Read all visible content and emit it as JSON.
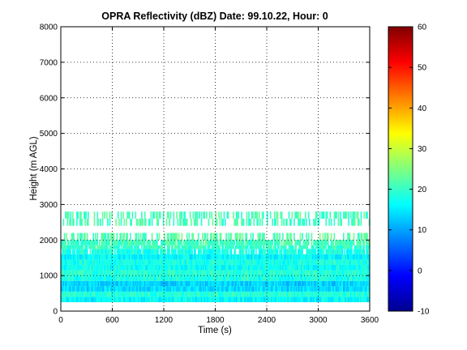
{
  "chart_data": {
    "type": "heatmap",
    "title": "OPRA Reflectivity (dBZ)  Date: 99.10.22, Hour: 0",
    "xlabel": "Time (s)",
    "ylabel": "Height (m AGL)",
    "xlim": [
      0,
      3600
    ],
    "ylim": [
      0,
      8000
    ],
    "x_ticks": [
      "0",
      "600",
      "1200",
      "1800",
      "2400",
      "3000",
      "3600"
    ],
    "y_ticks": [
      "0",
      "1000",
      "2000",
      "3000",
      "4000",
      "5000",
      "6000",
      "7000",
      "8000"
    ],
    "grid": true,
    "grid_style": "dotted",
    "colorbar": {
      "label_ticks": [
        "-10",
        "0",
        "10",
        "20",
        "30",
        "40",
        "50",
        "60"
      ],
      "range": [
        -10,
        60
      ],
      "colormap": "jet"
    },
    "height_bands_dbz": [
      {
        "y0": 250,
        "y1": 400,
        "dbz": 16
      },
      {
        "y0": 400,
        "y1": 550,
        "dbz": 19
      },
      {
        "y0": 550,
        "y1": 700,
        "dbz": 14
      },
      {
        "y0": 700,
        "y1": 850,
        "dbz": 13
      },
      {
        "y0": 850,
        "y1": 1000,
        "dbz": 18
      },
      {
        "y0": 1000,
        "y1": 1150,
        "dbz": 19
      },
      {
        "y0": 1150,
        "y1": 1300,
        "dbz": 17
      },
      {
        "y0": 1300,
        "y1": 1450,
        "dbz": 18
      },
      {
        "y0": 1450,
        "y1": 1600,
        "dbz": 16
      },
      {
        "y0": 1600,
        "y1": 1750,
        "dbz": 18
      },
      {
        "y0": 1750,
        "y1": 1850,
        "dbz": 20
      },
      {
        "y0": 1850,
        "y1": 2000,
        "dbz": 21
      },
      {
        "y0": 2000,
        "y1": 2200,
        "dbz": 22
      },
      {
        "y0": 2400,
        "y1": 2600,
        "dbz": 21
      },
      {
        "y0": 2600,
        "y1": 2800,
        "dbz": 21
      }
    ]
  }
}
